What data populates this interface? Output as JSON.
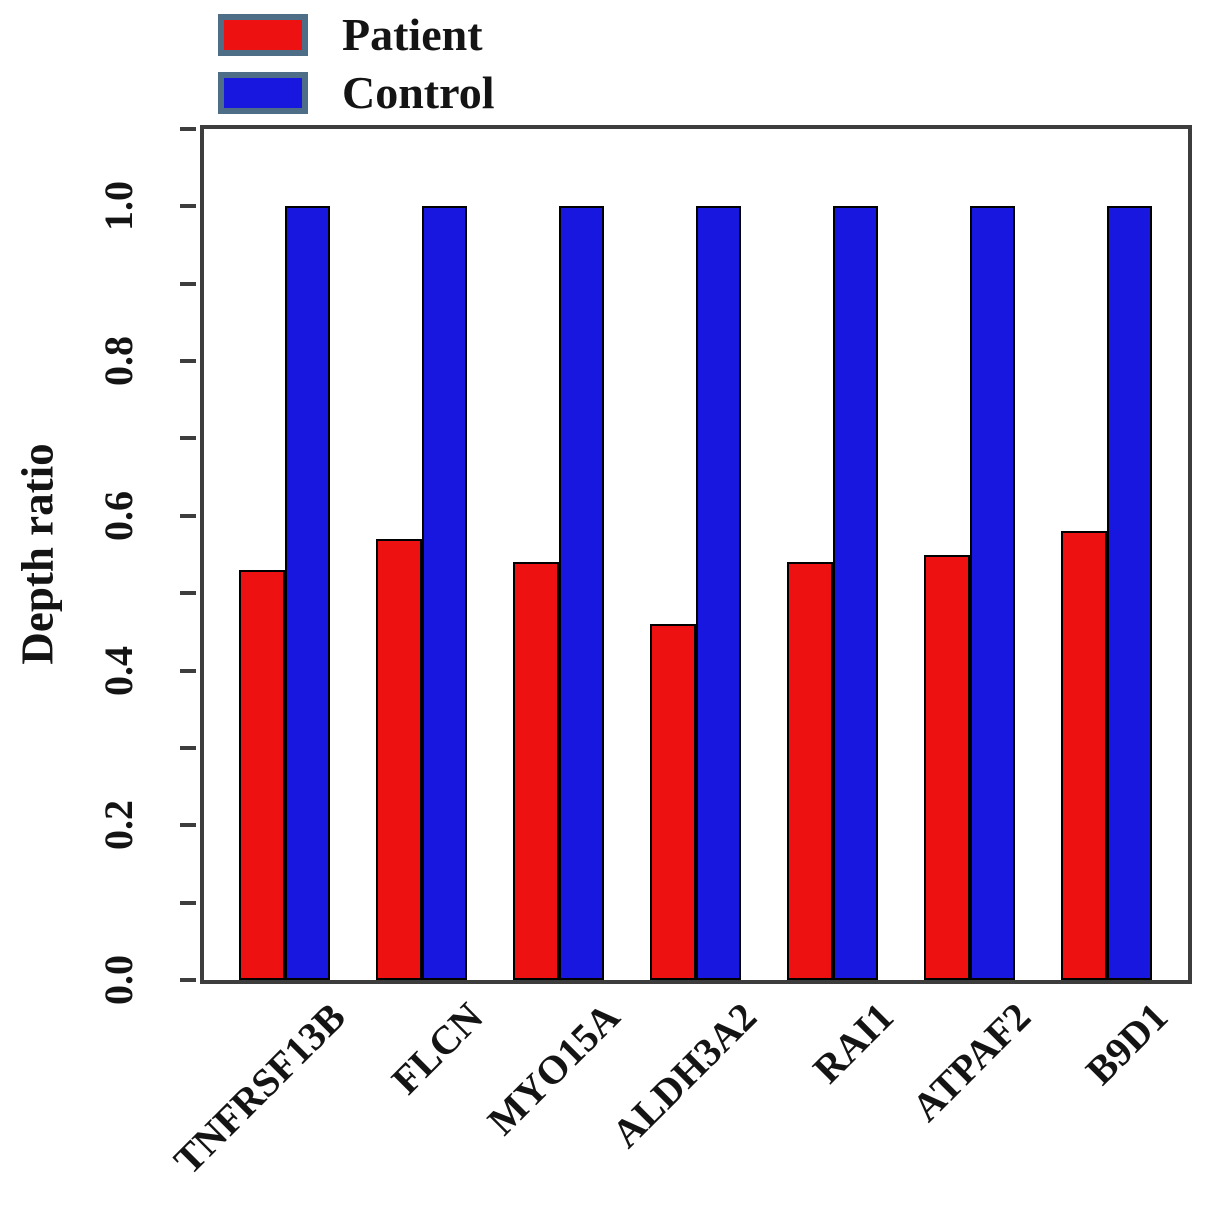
{
  "chart_data": {
    "type": "bar",
    "title": "",
    "xlabel": "",
    "ylabel": "Depth ratio",
    "categories": [
      "TNFRSF13B",
      "FLCN",
      "MYO15A",
      "ALDH3A2",
      "RAI1",
      "ATPAF2",
      "B9D1"
    ],
    "series": [
      {
        "name": "Patient",
        "color": "#ee1111",
        "values": [
          0.53,
          0.57,
          0.54,
          0.46,
          0.54,
          0.55,
          0.58
        ]
      },
      {
        "name": "Control",
        "color": "#1717e0",
        "values": [
          1.0,
          1.0,
          1.0,
          1.0,
          1.0,
          1.0,
          1.0
        ]
      }
    ],
    "ylim": [
      0,
      1.1
    ],
    "ytick_step_minor": 0.1,
    "ytick_labels": [
      "0.0",
      "0.2",
      "0.4",
      "0.6",
      "0.8",
      "1.0"
    ],
    "ytick_label_values": [
      0.0,
      0.2,
      0.4,
      0.6,
      0.8,
      1.0
    ],
    "grid": false,
    "legend_position": "top-left",
    "bar_border_color": "#000000",
    "axis_color": "#3d3d3d",
    "legend_swatch_border_color": "#4e6d87"
  }
}
